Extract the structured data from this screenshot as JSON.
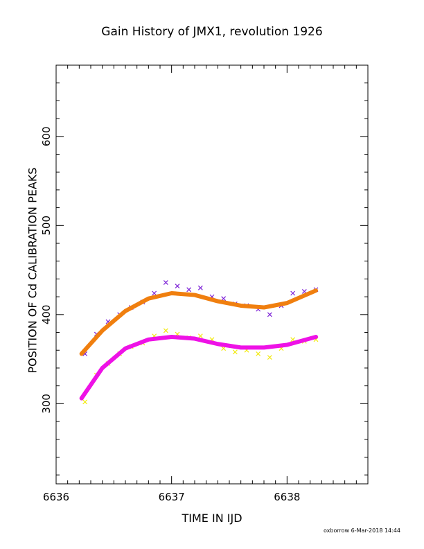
{
  "chart_data": {
    "type": "scatter",
    "title": "Gain History of JMX1, revolution 1926",
    "xlabel": "TIME IN IJD",
    "ylabel": "POSITION OF Cd CALIBRATION PEAKS",
    "xlim": [
      6636.0,
      6638.7
    ],
    "ylim": [
      210,
      680
    ],
    "xticks": [
      "6636",
      "6637",
      "6638"
    ],
    "yticks": [
      "300",
      "400",
      "500",
      "600"
    ],
    "grid": false,
    "legend": "none",
    "series": [
      {
        "marker": "x",
        "color": "#7b1fd6",
        "x": [
          6636.25,
          6636.35,
          6636.45,
          6636.55,
          6636.65,
          6636.75,
          6636.85,
          6636.95,
          6637.05,
          6637.15,
          6637.25,
          6637.35,
          6637.45,
          6637.55,
          6637.65,
          6637.75,
          6637.85,
          6637.95,
          6638.05,
          6638.15,
          6638.25
        ],
        "y": [
          356,
          378,
          392,
          400,
          408,
          414,
          424,
          436,
          432,
          428,
          430,
          420,
          418,
          412,
          410,
          406,
          400,
          410,
          424,
          426,
          428
        ]
      },
      {
        "marker": "x",
        "color": "#f2ea12",
        "x": [
          6636.25,
          6636.35,
          6636.45,
          6636.55,
          6636.65,
          6636.75,
          6636.85,
          6636.95,
          6637.05,
          6637.15,
          6637.25,
          6637.35,
          6637.45,
          6637.55,
          6637.65,
          6637.75,
          6637.85,
          6637.95,
          6638.05,
          6638.15,
          6638.25
        ],
        "y": [
          302,
          332,
          345,
          356,
          364,
          368,
          376,
          382,
          378,
          374,
          376,
          372,
          362,
          358,
          360,
          356,
          352,
          362,
          372,
          370,
          372
        ]
      },
      {
        "type": "line",
        "color": "#f07f0f",
        "x": [
          6636.22,
          6636.4,
          6636.6,
          6636.8,
          6637.0,
          6637.2,
          6637.4,
          6637.6,
          6637.8,
          6638.0,
          6638.25
        ],
        "y": [
          356,
          382,
          404,
          418,
          424,
          422,
          415,
          410,
          408,
          413,
          427
        ]
      },
      {
        "type": "line",
        "color": "#ee12e6",
        "x": [
          6636.22,
          6636.4,
          6636.6,
          6636.8,
          6637.0,
          6637.2,
          6637.4,
          6637.6,
          6637.8,
          6638.0,
          6638.25
        ],
        "y": [
          306,
          340,
          362,
          372,
          375,
          373,
          367,
          363,
          363,
          366,
          375
        ]
      }
    ]
  },
  "footer": "oxborrow  6-Mar-2018 14:44"
}
